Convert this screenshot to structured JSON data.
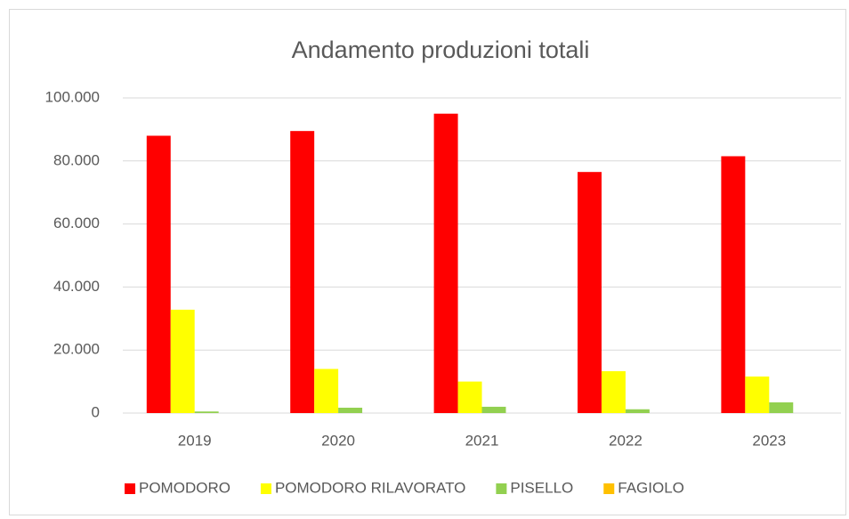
{
  "chart_data": {
    "type": "bar",
    "title": "Andamento produzioni totali",
    "categories": [
      "2019",
      "2020",
      "2021",
      "2022",
      "2023"
    ],
    "series": [
      {
        "name": "POMODORO",
        "color": "#ff0000",
        "values": [
          88000,
          89500,
          95000,
          76500,
          81500
        ]
      },
      {
        "name": "POMODORO RILAVORATO",
        "color": "#ffff00",
        "values": [
          32800,
          14000,
          10000,
          13300,
          11600
        ]
      },
      {
        "name": "PISELLO",
        "color": "#92d050",
        "values": [
          500,
          1700,
          2000,
          1200,
          3400
        ]
      },
      {
        "name": "FAGIOLO",
        "color": "#ffc000",
        "values": [
          0,
          0,
          0,
          0,
          0
        ]
      }
    ],
    "ylim": [
      0,
      100000
    ],
    "yticks": [
      0,
      {
        "value": 20000,
        "label": "20.000"
      },
      {
        "value": 40000,
        "label": "40.000"
      },
      {
        "value": 60000,
        "label": "60.000"
      },
      {
        "value": 80000,
        "label": "80.000"
      },
      {
        "value": 100000,
        "label": "100.000"
      }
    ],
    "grid": true,
    "legend": "bottom"
  }
}
